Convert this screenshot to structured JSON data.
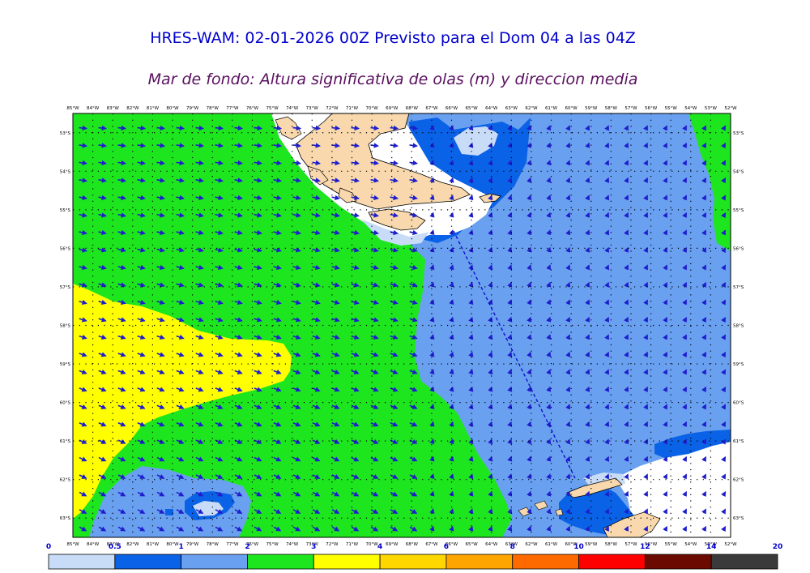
{
  "title": "HRES-WAM: 02-01-2026 00Z Previsto para el Dom 04 a las 04Z",
  "subtitle": "Mar de fondo: Altura significativa de olas (m) y direccion media",
  "map": {
    "lon_min": -85,
    "lon_max": -52,
    "lat_max": -52.5,
    "lat_min": -63.5,
    "lon_ticks": [
      "85°W",
      "84°W",
      "83°W",
      "82°W",
      "81°W",
      "80°W",
      "79°W",
      "78°W",
      "77°W",
      "76°W",
      "75°W",
      "74°W",
      "73°W",
      "72°W",
      "71°W",
      "70°W",
      "69°W",
      "68°W",
      "67°W",
      "66°W",
      "65°W",
      "64°W",
      "63°W",
      "62°W",
      "61°W",
      "60°W",
      "59°W",
      "58°W",
      "57°W",
      "56°W",
      "55°W",
      "54°W",
      "53°W",
      "52°W"
    ],
    "lat_ticks": [
      "53°S",
      "54°S",
      "55°S",
      "56°S",
      "57°S",
      "58°S",
      "59°S",
      "60°S",
      "61°S",
      "62°S",
      "63°S"
    ],
    "lat_values": [
      -53,
      -54,
      -55,
      -56,
      -57,
      -58,
      -59,
      -60,
      -61,
      -62,
      -63
    ],
    "colors": {
      "wave_0_1": "#6aa0f0",
      "wave_1_2": "#6aa0f0",
      "wave_0_5_1": "#0a62e6",
      "wave_0_0_5": "#c8dcf8",
      "wave_2_3": "#1ee61e",
      "wave_3_4": "#ffff00",
      "land": "#f8d8ac",
      "arrow": "#1e1ecc"
    },
    "track_line_color": "#1010cc"
  },
  "colorbar": {
    "labels": [
      "0",
      "0.5",
      "1",
      "2",
      "3",
      "4",
      "6",
      "8",
      "10",
      "12",
      "14",
      "20"
    ],
    "colors": [
      "#c8dcf8",
      "#0a62e6",
      "#6aa0f0",
      "#1ee61e",
      "#ffff00",
      "#ffd700",
      "#ffa500",
      "#ff6a00",
      "#ff0000",
      "#6a0a00",
      "#3a3a3a"
    ]
  }
}
